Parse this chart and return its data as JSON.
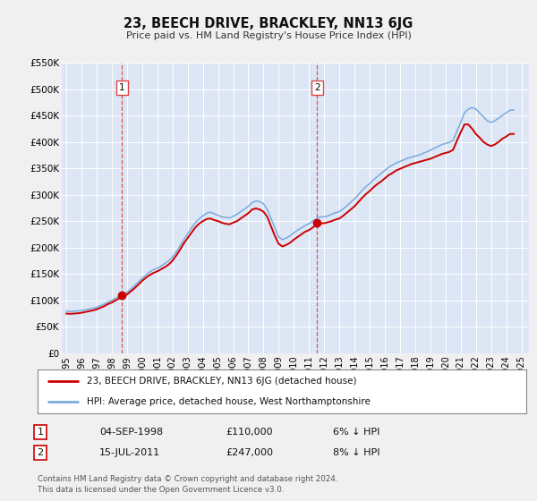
{
  "title": "23, BEECH DRIVE, BRACKLEY, NN13 6JG",
  "subtitle": "Price paid vs. HM Land Registry's House Price Index (HPI)",
  "ylim": [
    0,
    550000
  ],
  "yticks": [
    0,
    50000,
    100000,
    150000,
    200000,
    250000,
    300000,
    350000,
    400000,
    450000,
    500000,
    550000
  ],
  "ytick_labels": [
    "£0",
    "£50K",
    "£100K",
    "£150K",
    "£200K",
    "£250K",
    "£300K",
    "£350K",
    "£400K",
    "£450K",
    "£500K",
    "£550K"
  ],
  "xlim_start": 1994.7,
  "xlim_end": 2025.5,
  "xticks": [
    1995,
    1996,
    1997,
    1998,
    1999,
    2000,
    2001,
    2002,
    2003,
    2004,
    2005,
    2006,
    2007,
    2008,
    2009,
    2010,
    2011,
    2012,
    2013,
    2014,
    2015,
    2016,
    2017,
    2018,
    2019,
    2020,
    2021,
    2022,
    2023,
    2024,
    2025
  ],
  "bg_color": "#f0f0f0",
  "plot_bg_color": "#dce6f5",
  "grid_color": "#ffffff",
  "red_line_color": "#cc0000",
  "blue_line_color": "#7aaadd",
  "marker_color": "#cc0000",
  "dashed_line_color": "#dd4444",
  "sale1_x": 1998.67,
  "sale1_y": 110000,
  "sale1_label": "1",
  "sale2_x": 2011.54,
  "sale2_y": 247000,
  "sale2_label": "2",
  "legend1_text": "23, BEECH DRIVE, BRACKLEY, NN13 6JG (detached house)",
  "legend2_text": "HPI: Average price, detached house, West Northamptonshire",
  "table_row1_num": "1",
  "table_row1_date": "04-SEP-1998",
  "table_row1_price": "£110,000",
  "table_row1_hpi": "6% ↓ HPI",
  "table_row2_num": "2",
  "table_row2_date": "15-JUL-2011",
  "table_row2_price": "£247,000",
  "table_row2_hpi": "8% ↓ HPI",
  "footer_text1": "Contains HM Land Registry data © Crown copyright and database right 2024.",
  "footer_text2": "This data is licensed under the Open Government Licence v3.0.",
  "hpi_data_x": [
    1995.0,
    1995.25,
    1995.5,
    1995.75,
    1996.0,
    1996.25,
    1996.5,
    1996.75,
    1997.0,
    1997.25,
    1997.5,
    1997.75,
    1998.0,
    1998.25,
    1998.5,
    1998.75,
    1999.0,
    1999.25,
    1999.5,
    1999.75,
    2000.0,
    2000.25,
    2000.5,
    2000.75,
    2001.0,
    2001.25,
    2001.5,
    2001.75,
    2002.0,
    2002.25,
    2002.5,
    2002.75,
    2003.0,
    2003.25,
    2003.5,
    2003.75,
    2004.0,
    2004.25,
    2004.5,
    2004.75,
    2005.0,
    2005.25,
    2005.5,
    2005.75,
    2006.0,
    2006.25,
    2006.5,
    2006.75,
    2007.0,
    2007.25,
    2007.5,
    2007.75,
    2008.0,
    2008.25,
    2008.5,
    2008.75,
    2009.0,
    2009.25,
    2009.5,
    2009.75,
    2010.0,
    2010.25,
    2010.5,
    2010.75,
    2011.0,
    2011.25,
    2011.5,
    2011.75,
    2012.0,
    2012.25,
    2012.5,
    2012.75,
    2013.0,
    2013.25,
    2013.5,
    2013.75,
    2014.0,
    2014.25,
    2014.5,
    2014.75,
    2015.0,
    2015.25,
    2015.5,
    2015.75,
    2016.0,
    2016.25,
    2016.5,
    2016.75,
    2017.0,
    2017.25,
    2017.5,
    2017.75,
    2018.0,
    2018.25,
    2018.5,
    2018.75,
    2019.0,
    2019.25,
    2019.5,
    2019.75,
    2020.0,
    2020.25,
    2020.5,
    2020.75,
    2021.0,
    2021.25,
    2021.5,
    2021.75,
    2022.0,
    2022.25,
    2022.5,
    2022.75,
    2023.0,
    2023.25,
    2023.5,
    2023.75,
    2024.0,
    2024.25,
    2024.5
  ],
  "hpi_data_y": [
    80000,
    79000,
    79500,
    80000,
    81000,
    82000,
    83500,
    85000,
    87000,
    90000,
    93000,
    97000,
    100000,
    104000,
    108000,
    111000,
    115000,
    121000,
    128000,
    135000,
    142000,
    148000,
    154000,
    158000,
    161000,
    165000,
    170000,
    175000,
    182000,
    192000,
    203000,
    215000,
    226000,
    237000,
    247000,
    254000,
    260000,
    265000,
    267000,
    264000,
    261000,
    258000,
    257000,
    256000,
    259000,
    263000,
    268000,
    273000,
    278000,
    285000,
    288000,
    287000,
    283000,
    272000,
    255000,
    237000,
    220000,
    215000,
    218000,
    222000,
    228000,
    233000,
    237000,
    242000,
    245000,
    250000,
    255000,
    258000,
    258000,
    260000,
    263000,
    266000,
    268000,
    273000,
    279000,
    286000,
    292000,
    300000,
    308000,
    315000,
    321000,
    328000,
    334000,
    340000,
    346000,
    352000,
    356000,
    360000,
    363000,
    366000,
    369000,
    371000,
    373000,
    375000,
    378000,
    381000,
    384000,
    388000,
    391000,
    395000,
    397000,
    399000,
    403000,
    420000,
    437000,
    455000,
    462000,
    465000,
    462000,
    455000,
    447000,
    440000,
    437000,
    440000,
    445000,
    450000,
    455000,
    460000,
    460000
  ],
  "red_data_x": [
    1995.0,
    1995.25,
    1995.5,
    1995.75,
    1996.0,
    1996.25,
    1996.5,
    1996.75,
    1997.0,
    1997.25,
    1997.5,
    1997.75,
    1998.0,
    1998.25,
    1998.5,
    1998.75,
    1999.0,
    1999.25,
    1999.5,
    1999.75,
    2000.0,
    2000.25,
    2000.5,
    2000.75,
    2001.0,
    2001.25,
    2001.5,
    2001.75,
    2002.0,
    2002.25,
    2002.5,
    2002.75,
    2003.0,
    2003.25,
    2003.5,
    2003.75,
    2004.0,
    2004.25,
    2004.5,
    2004.75,
    2005.0,
    2005.25,
    2005.5,
    2005.75,
    2006.0,
    2006.25,
    2006.5,
    2006.75,
    2007.0,
    2007.25,
    2007.5,
    2007.75,
    2008.0,
    2008.25,
    2008.5,
    2008.75,
    2009.0,
    2009.25,
    2009.5,
    2009.75,
    2010.0,
    2010.25,
    2010.5,
    2010.75,
    2011.0,
    2011.25,
    2011.5,
    2011.75,
    2012.0,
    2012.25,
    2012.5,
    2012.75,
    2013.0,
    2013.25,
    2013.5,
    2013.75,
    2014.0,
    2014.25,
    2014.5,
    2014.75,
    2015.0,
    2015.25,
    2015.5,
    2015.75,
    2016.0,
    2016.25,
    2016.5,
    2016.75,
    2017.0,
    2017.25,
    2017.5,
    2017.75,
    2018.0,
    2018.25,
    2018.5,
    2018.75,
    2019.0,
    2019.25,
    2019.5,
    2019.75,
    2020.0,
    2020.25,
    2020.5,
    2020.75,
    2021.0,
    2021.25,
    2021.5,
    2021.75,
    2022.0,
    2022.25,
    2022.5,
    2022.75,
    2023.0,
    2023.25,
    2023.5,
    2023.75,
    2024.0,
    2024.25,
    2024.5
  ],
  "red_data_y": [
    75000,
    74500,
    75000,
    75500,
    76500,
    78000,
    79500,
    81000,
    83000,
    86000,
    89000,
    93000,
    96000,
    100000,
    104000,
    107000,
    111000,
    117000,
    123000,
    130000,
    137000,
    143000,
    148000,
    152000,
    155000,
    159000,
    163000,
    168000,
    175000,
    185000,
    196000,
    208000,
    218000,
    228000,
    238000,
    245000,
    250000,
    254000,
    255000,
    252000,
    250000,
    247000,
    245000,
    244000,
    247000,
    250000,
    255000,
    260000,
    265000,
    272000,
    274000,
    272000,
    268000,
    258000,
    240000,
    222000,
    207000,
    202000,
    205000,
    209000,
    215000,
    220000,
    225000,
    230000,
    233000,
    238000,
    243000,
    246000,
    246000,
    248000,
    250000,
    253000,
    255000,
    260000,
    266000,
    272000,
    278000,
    286000,
    294000,
    301000,
    307000,
    314000,
    320000,
    325000,
    331000,
    337000,
    341000,
    346000,
    349000,
    352000,
    355000,
    358000,
    360000,
    362000,
    364000,
    366000,
    368000,
    371000,
    374000,
    377000,
    379000,
    381000,
    385000,
    402000,
    418000,
    433000,
    433000,
    425000,
    415000,
    408000,
    400000,
    395000,
    392000,
    395000,
    400000,
    406000,
    410000,
    415000,
    415000
  ]
}
